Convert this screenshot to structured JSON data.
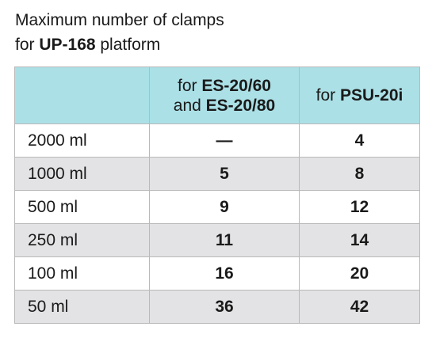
{
  "title": {
    "line1": "Maximum number of clamps",
    "line2_prefix": "for ",
    "line2_bold": "UP-168",
    "line2_suffix": " platform"
  },
  "header": {
    "col2": {
      "line1_prefix": "for ",
      "line1_bold": "ES-20/60",
      "line2_prefix": "and ",
      "line2_bold": "ES-20/80"
    },
    "col3": {
      "prefix": "for ",
      "bold": "PSU-20i"
    }
  },
  "rows": [
    {
      "volume": "2000 ml",
      "es": "—",
      "psu": "4"
    },
    {
      "volume": "1000 ml",
      "es": "5",
      "psu": "8"
    },
    {
      "volume": "500 ml",
      "es": "9",
      "psu": "12"
    },
    {
      "volume": "250 ml",
      "es": "11",
      "psu": "14"
    },
    {
      "volume": "100 ml",
      "es": "16",
      "psu": "20"
    },
    {
      "volume": "50 ml",
      "es": "36",
      "psu": "42"
    }
  ],
  "colors": {
    "header_bg": "#abe0e6",
    "stripe_bg": "#e3e3e5",
    "border": "#b9b9b9"
  }
}
